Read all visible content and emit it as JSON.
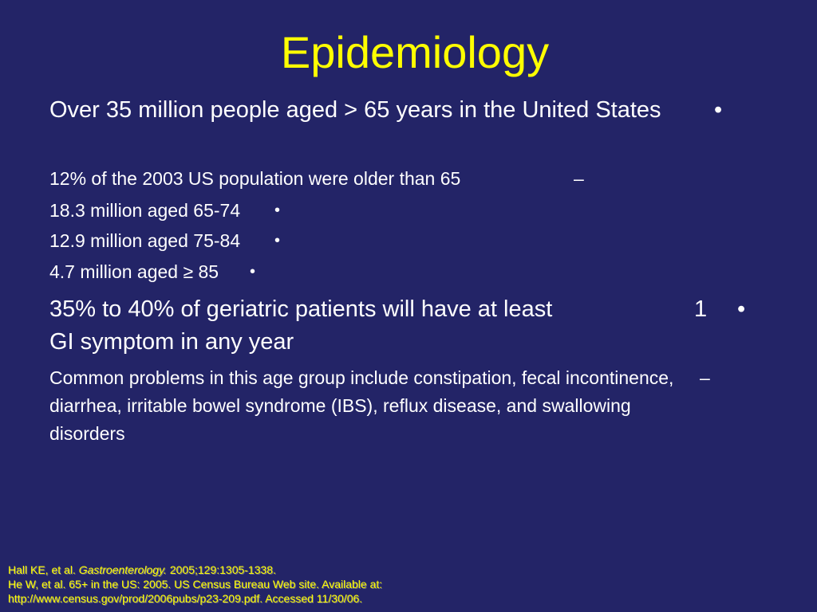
{
  "slide": {
    "title": "Epidemiology",
    "items": [
      {
        "text": "Over 35 million people aged > 65 years in the United States",
        "marker": "•"
      },
      {
        "text": "12% of the 2003 US population were older than 65",
        "marker": "–"
      },
      {
        "text": "18.3 million aged 65-74",
        "marker": "•"
      },
      {
        "text": "12.9 million aged 75-84",
        "marker": "•"
      },
      {
        "text": "4.7 million aged ≥ 85",
        "marker": "•"
      },
      {
        "text": "35% to 40% of geriatric patients will have at least",
        "text_cont": "GI symptom in any year",
        "number": "1",
        "marker": "•"
      },
      {
        "text": "Common problems in this age group include constipation, fecal incontinence, diarrhea, irritable bowel syndrome (IBS), reflux disease, and swallowing disorders",
        "marker": "–"
      }
    ],
    "references": {
      "ref1_pre": "Hall KE, et al. ",
      "ref1_journal": "Gastroenterology.",
      "ref1_post": " 2005;129:1305-1338.",
      "ref2": "He W, et al. 65+ in the US: 2005. US Census Bureau Web site. Available at:",
      "ref3": "http://www.census.gov/prod/2006pubs/p23-209.pdf. Accessed 11/30/06."
    }
  },
  "colors": {
    "background": "#232467",
    "title": "#ffff00",
    "body_text": "#ffffff",
    "references": "#ffff00"
  }
}
